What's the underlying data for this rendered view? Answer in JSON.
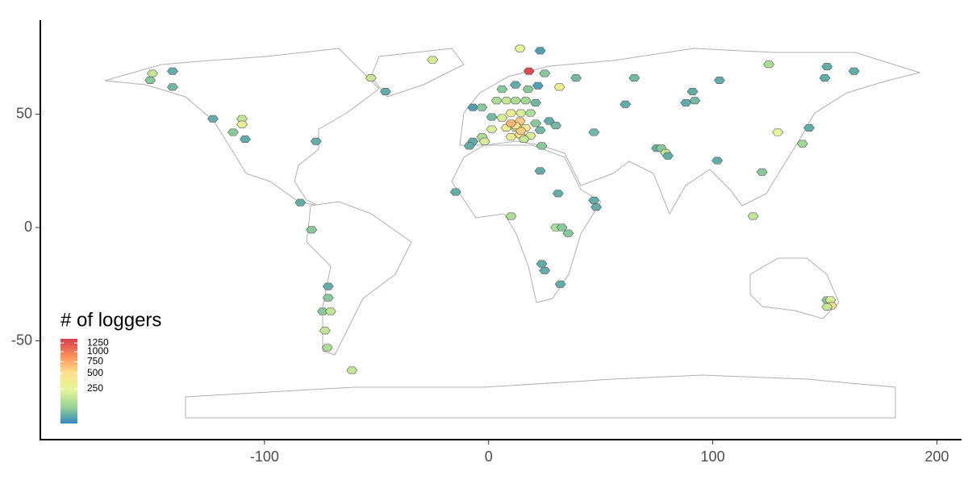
{
  "chart_data": {
    "type": "hexbin_map",
    "xlim": [
      -200,
      211
    ],
    "ylim": [
      -93.6,
      91.5
    ],
    "xticks": [
      -100,
      0,
      100,
      200
    ],
    "yticks": [
      -50,
      0,
      50
    ],
    "legend_title": "# of loggers",
    "colorbar_ticks": [
      250,
      500,
      750,
      1000,
      1250
    ],
    "colorbar_limits": [
      1,
      1380
    ],
    "color_scale": "sqrt",
    "colors": [
      "#3288bd",
      "#99d594",
      "#e6f598",
      "#fee08b",
      "#fc8d59",
      "#d53e4f"
    ],
    "lon": [
      -150,
      -141,
      -151,
      -141,
      -52.5,
      -46,
      -25,
      14,
      23,
      18,
      25,
      -123,
      -110,
      -110,
      -114,
      -108.6,
      -77,
      -84,
      -79,
      -71.6,
      -71.6,
      -74,
      -70.5,
      -73,
      -72,
      -61,
      -7,
      -3,
      6,
      12,
      17.6,
      22,
      1.4,
      6,
      10,
      14.4,
      18.7,
      7.9,
      12,
      16.5,
      21,
      3.6,
      8,
      12,
      16.5,
      21,
      1.4,
      -2.9,
      -7,
      -8.6,
      -1.8,
      10,
      14,
      14.4,
      18.7,
      23,
      27,
      30,
      15.8,
      23.7,
      31.6,
      39,
      47,
      14,
      12,
      10,
      23,
      31,
      47,
      48,
      10,
      30,
      32.7,
      35.5,
      23.7,
      25,
      32,
      -14.7,
      65,
      61,
      91,
      88,
      92,
      103,
      125,
      151,
      163,
      150,
      75,
      77,
      79,
      80,
      102,
      129,
      143,
      140,
      122,
      118,
      151,
      152.5,
      153,
      151
    ],
    "lat": [
      68,
      69,
      65,
      62,
      66,
      60,
      74,
      79,
      78,
      69,
      68,
      48,
      48,
      45.5,
      42,
      39,
      38,
      11,
      -1,
      -26,
      -31,
      -37,
      -37,
      -45.5,
      -53,
      -63,
      53,
      53,
      61,
      63,
      61,
      62.6,
      48.8,
      48.4,
      50.5,
      50.5,
      50.5,
      44,
      44,
      44,
      46,
      56,
      56,
      56,
      56,
      55,
      43.4,
      40,
      38,
      36,
      38,
      40,
      41,
      42.7,
      40.5,
      43,
      47,
      45,
      39,
      36,
      62,
      66,
      42,
      47,
      45,
      46,
      25,
      15,
      12,
      9,
      5,
      0,
      0,
      -2.5,
      -16,
      -19,
      -25,
      15.7,
      66,
      54.4,
      60,
      55,
      56,
      65,
      72,
      71,
      69,
      66,
      35,
      35,
      33,
      31.6,
      29.5,
      42,
      44,
      37,
      24.5,
      5,
      -32,
      -32,
      -34.5,
      -35
    ],
    "values": [
      150,
      20,
      50,
      30,
      150,
      20,
      200,
      250,
      10,
      1300,
      50,
      20,
      150,
      300,
      50,
      20,
      20,
      20,
      50,
      20,
      50,
      50,
      150,
      150,
      100,
      150,
      10,
      50,
      50,
      20,
      50,
      10,
      30,
      200,
      300,
      200,
      100,
      300,
      150,
      400,
      50,
      100,
      150,
      100,
      80,
      30,
      200,
      100,
      20,
      20,
      200,
      300,
      500,
      600,
      200,
      30,
      20,
      30,
      150,
      50,
      300,
      30,
      30,
      600,
      500,
      700,
      20,
      20,
      20,
      20,
      100,
      100,
      50,
      50,
      20,
      20,
      20,
      20,
      30,
      20,
      20,
      20,
      30,
      20,
      100,
      20,
      20,
      20,
      20,
      50,
      150,
      20,
      20,
      250,
      20,
      80,
      50,
      150,
      50,
      200,
      500,
      150
    ]
  }
}
